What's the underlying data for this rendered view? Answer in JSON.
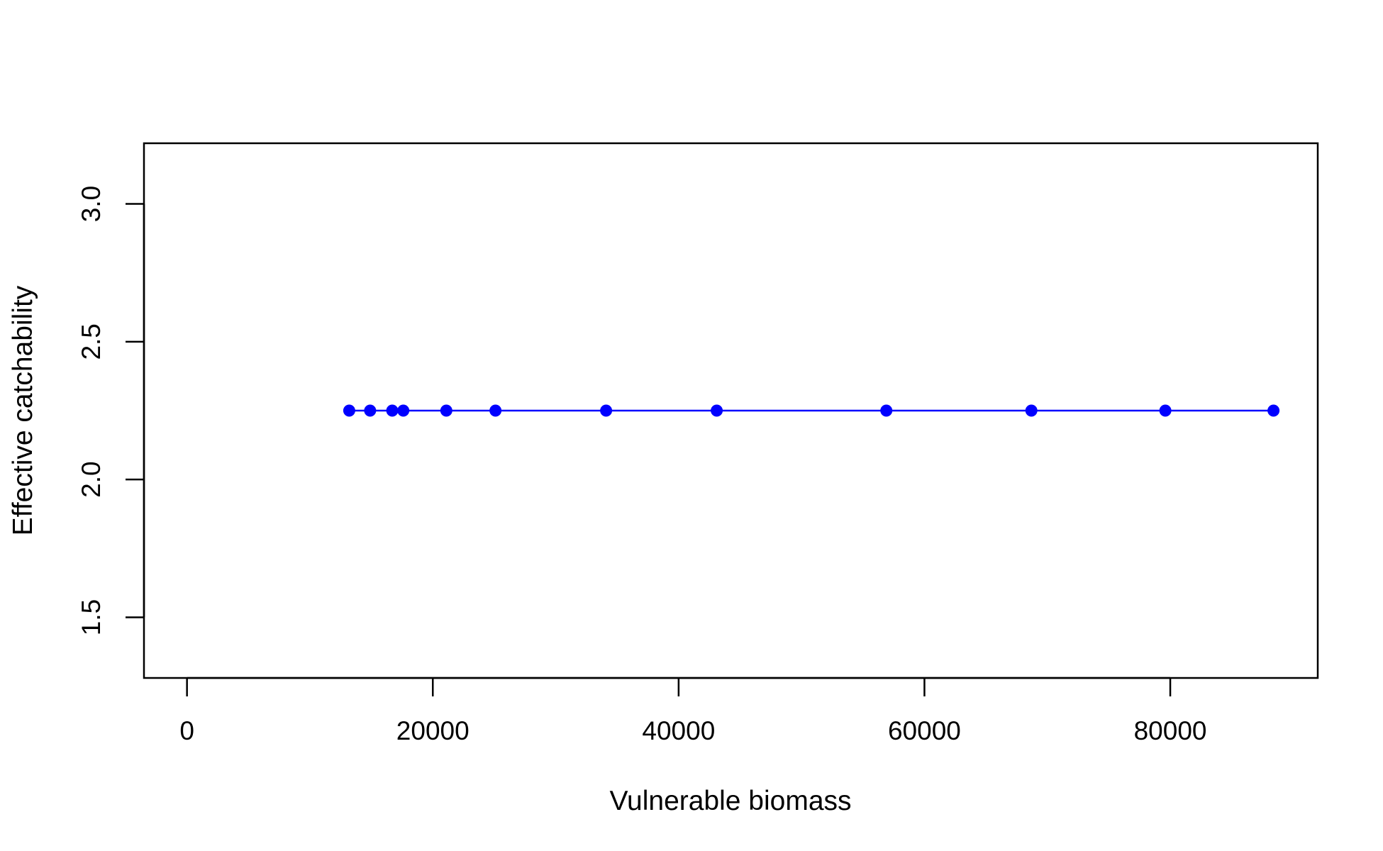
{
  "chart_data": {
    "type": "line",
    "title": "",
    "xlabel": "Vulnerable biomass",
    "ylabel": "Effective catchability",
    "xlim": [
      -3500,
      92000
    ],
    "ylim": [
      1.28,
      3.22
    ],
    "xticks": [
      0,
      20000,
      40000,
      60000,
      80000
    ],
    "yticks": [
      1.5,
      2.0,
      2.5,
      3.0
    ],
    "xtick_labels": [
      "0",
      "20000",
      "40000",
      "60000",
      "80000"
    ],
    "ytick_labels": [
      "1.5",
      "2.0",
      "2.5",
      "3.0"
    ],
    "grid": false,
    "legend": "none",
    "series": [
      {
        "color": "#0000ff",
        "marker": "filled-circle",
        "x": [
          13200,
          14900,
          16700,
          17600,
          21100,
          25100,
          34100,
          43100,
          56900,
          68700,
          79600,
          88400
        ],
        "y": [
          2.25,
          2.25,
          2.25,
          2.25,
          2.25,
          2.25,
          2.25,
          2.25,
          2.25,
          2.25,
          2.25,
          2.25
        ]
      }
    ]
  }
}
